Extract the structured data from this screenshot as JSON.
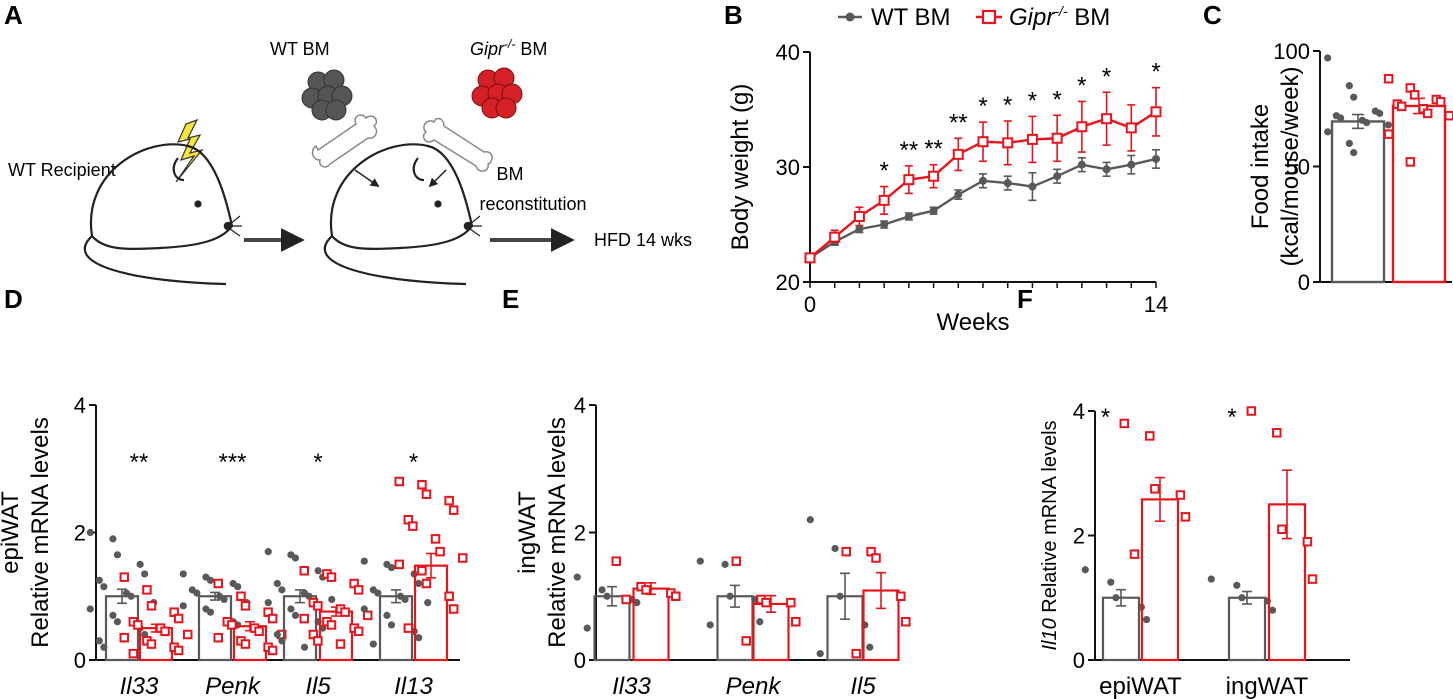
{
  "colors": {
    "wt": "#595959",
    "gipr": "#e8141c",
    "axis": "#111111",
    "yellow": "#f7e53a"
  },
  "panel_labels": {
    "A": "A",
    "B": "B",
    "C": "C",
    "D": "D",
    "E": "E",
    "F": "F"
  },
  "schematic": {
    "recipient_label": "WT Recipient",
    "wt_bm_label": "WT BM",
    "gipr_bm_gene": "Gipr",
    "gipr_bm_sup": "-/-",
    "gipr_bm_suffix": " BM",
    "reconstitution_line1": "BM",
    "reconstitution_line2": "reconstitution",
    "hfd_label": "HFD 14 wks"
  },
  "legend": {
    "wt": "WT BM",
    "gipr_gene": "Gipr",
    "gipr_sup": "-/-",
    "gipr_suffix": " BM"
  },
  "chart_data": [
    {
      "id": "B",
      "type": "line",
      "xlabel": "Weeks",
      "ylabel": "Body weight (g)",
      "xlim": [
        0,
        14
      ],
      "ylim": [
        20,
        40
      ],
      "xticks": [
        "0",
        "14"
      ],
      "yticks": [
        "20",
        "30",
        "40"
      ],
      "x": [
        0,
        1,
        2,
        3,
        4,
        5,
        6,
        7,
        8,
        9,
        10,
        11,
        12,
        13,
        14
      ],
      "series": [
        {
          "name": "WT BM",
          "values": [
            22.1,
            23.5,
            24.6,
            25.0,
            25.7,
            26.2,
            27.6,
            28.8,
            28.6,
            28.3,
            29.2,
            30.2,
            29.8,
            30.2,
            30.7
          ],
          "errors": [
            0.3,
            0.3,
            0.3,
            0.3,
            0.3,
            0.3,
            0.4,
            0.6,
            0.6,
            1.2,
            0.6,
            0.6,
            0.6,
            0.8,
            0.8
          ]
        },
        {
          "name": "Gipr-/- BM",
          "values": [
            22.1,
            23.9,
            25.7,
            27.1,
            28.9,
            29.2,
            31.1,
            32.2,
            32.1,
            32.4,
            32.5,
            33.5,
            34.2,
            33.4,
            34.8
          ],
          "errors": [
            0.4,
            0.6,
            0.8,
            1.2,
            1.2,
            1.0,
            1.4,
            1.7,
            1.9,
            2.0,
            2.0,
            2.2,
            2.3,
            2.0,
            2.1
          ]
        }
      ],
      "significance": [
        {
          "x": 3,
          "label": "*"
        },
        {
          "x": 4,
          "label": "**"
        },
        {
          "x": 5,
          "label": "**"
        },
        {
          "x": 6,
          "label": "**"
        },
        {
          "x": 7,
          "label": "*"
        },
        {
          "x": 8,
          "label": "*"
        },
        {
          "x": 9,
          "label": "*"
        },
        {
          "x": 10,
          "label": "*"
        },
        {
          "x": 11,
          "label": "*"
        },
        {
          "x": 12,
          "label": "*"
        },
        {
          "x": 14,
          "label": "*"
        }
      ]
    },
    {
      "id": "C",
      "type": "bar",
      "ylabel_line1": "Food intake",
      "ylabel_line2": "(kcal/mouse/week)",
      "ylim": [
        0,
        100
      ],
      "yticks": [
        "0",
        "50",
        "100"
      ],
      "categories": [
        "WT BM",
        "Gipr-/- BM"
      ],
      "values": [
        69.5,
        76.2
      ],
      "errors": [
        3.0,
        3.3
      ],
      "points": [
        [
          97,
          85,
          80,
          74,
          73,
          72,
          71,
          70,
          69,
          68,
          65,
          60,
          56
        ],
        [
          88,
          84,
          81,
          79,
          78,
          77,
          76,
          75,
          73,
          72,
          64,
          52
        ]
      ]
    },
    {
      "id": "D",
      "type": "bar",
      "ylabel_line1": "epiWAT",
      "ylabel_line2": "Relative mRNA levels",
      "ylim": [
        0,
        4
      ],
      "yticks": [
        "0",
        "2",
        "4"
      ],
      "categories": [
        "Il33",
        "Penk",
        "Il5",
        "Il13"
      ],
      "series": [
        {
          "name": "WT BM",
          "values": [
            1.0,
            1.0,
            1.0,
            1.0
          ],
          "errors": [
            0.11,
            0.06,
            0.1,
            0.1
          ],
          "points": [
            [
              2.0,
              1.9,
              1.65,
              1.5,
              1.35,
              1.25,
              1.15,
              1.05,
              1.0,
              0.9,
              0.8,
              0.7,
              0.6,
              0.5,
              0.4,
              0.3,
              0.2
            ],
            [
              1.35,
              1.3,
              1.25,
              1.2,
              1.15,
              1.1,
              1.05,
              1.0,
              0.95,
              0.9,
              0.85,
              0.8,
              0.75,
              0.6,
              0.55
            ],
            [
              1.7,
              1.65,
              1.6,
              1.4,
              1.3,
              1.2,
              1.1,
              1.05,
              1.0,
              0.95,
              0.9,
              0.8,
              0.7,
              0.6,
              0.5,
              0.4,
              0.3,
              0.2
            ],
            [
              1.55,
              1.5,
              1.45,
              1.35,
              1.2,
              1.1,
              1.05,
              1.0,
              0.95,
              0.9,
              0.8,
              0.7,
              0.55,
              0.45,
              0.35,
              0.25
            ]
          ]
        },
        {
          "name": "Gipr-/- BM",
          "values": [
            0.5,
            0.53,
            0.76,
            1.48
          ],
          "errors": [
            0.06,
            0.07,
            0.07,
            0.19
          ],
          "points": [
            [
              1.3,
              1.1,
              0.85,
              0.75,
              0.65,
              0.6,
              0.55,
              0.5,
              0.45,
              0.4,
              0.35,
              0.3,
              0.25,
              0.2,
              0.15,
              0.1
            ],
            [
              1.2,
              1.0,
              0.85,
              0.75,
              0.65,
              0.6,
              0.55,
              0.5,
              0.45,
              0.4,
              0.35,
              0.3,
              0.25,
              0.2,
              0.15
            ],
            [
              1.4,
              1.35,
              1.3,
              1.2,
              1.1,
              0.9,
              0.85,
              0.8,
              0.75,
              0.7,
              0.65,
              0.6,
              0.55,
              0.5,
              0.45,
              0.4,
              0.3,
              0.25
            ],
            [
              2.8,
              2.75,
              2.6,
              2.5,
              2.35,
              2.2,
              2.1,
              1.9,
              1.7,
              1.6,
              1.5,
              1.4,
              1.2,
              1.0,
              0.8,
              0.5
            ]
          ]
        }
      ],
      "significance": [
        "**",
        "***",
        "*",
        "*"
      ]
    },
    {
      "id": "E",
      "type": "bar",
      "ylabel_line1": "ingWAT",
      "ylabel_line2": "Relative mRNA levels",
      "ylim": [
        0,
        4
      ],
      "yticks": [
        "0",
        "2",
        "4"
      ],
      "categories": [
        "Il33",
        "Penk",
        "Il5"
      ],
      "series": [
        {
          "name": "WT BM",
          "values": [
            1.0,
            1.0,
            1.0
          ],
          "errors": [
            0.15,
            0.17,
            0.36
          ],
          "points": [
            [
              1.3,
              1.1,
              1.0,
              0.95,
              0.9,
              0.5
            ],
            [
              1.55,
              1.5,
              1.0,
              0.95,
              0.6,
              0.55
            ],
            [
              2.2,
              1.75,
              1.0,
              0.55,
              0.2,
              0.1
            ]
          ]
        },
        {
          "name": "Gipr-/- BM",
          "values": [
            1.12,
            0.88,
            1.09
          ],
          "errors": [
            0.09,
            0.13,
            0.28
          ],
          "points": [
            [
              1.55,
              1.15,
              1.1,
              1.05,
              1.0,
              0.95
            ],
            [
              1.55,
              0.95,
              0.9,
              0.9,
              0.6,
              0.3
            ],
            [
              1.7,
              1.7,
              1.6,
              1.0,
              0.6,
              0.1
            ]
          ]
        }
      ]
    },
    {
      "id": "F",
      "type": "bar",
      "ylabel_gene": "Il10",
      "ylabel_rest": " Relative mRNA levels",
      "ylim": [
        0,
        4
      ],
      "yticks": [
        "0",
        "2",
        "4"
      ],
      "categories": [
        "epiWAT",
        "ingWAT"
      ],
      "series": [
        {
          "name": "WT BM",
          "values": [
            1.0,
            1.0
          ],
          "errors": [
            0.13,
            0.1
          ],
          "points": [
            [
              1.45,
              1.25,
              1.0,
              0.85,
              0.65
            ],
            [
              1.3,
              1.2,
              1.0,
              0.95,
              0.8
            ]
          ]
        },
        {
          "name": "Gipr-/- BM",
          "values": [
            2.58,
            2.5
          ],
          "errors": [
            0.35,
            0.55
          ],
          "points": [
            [
              3.8,
              3.6,
              2.75,
              2.65,
              2.3,
              1.7
            ],
            [
              4.0,
              3.65,
              2.1,
              1.9,
              1.3
            ]
          ]
        }
      ],
      "significance": [
        "*",
        "*"
      ]
    }
  ]
}
